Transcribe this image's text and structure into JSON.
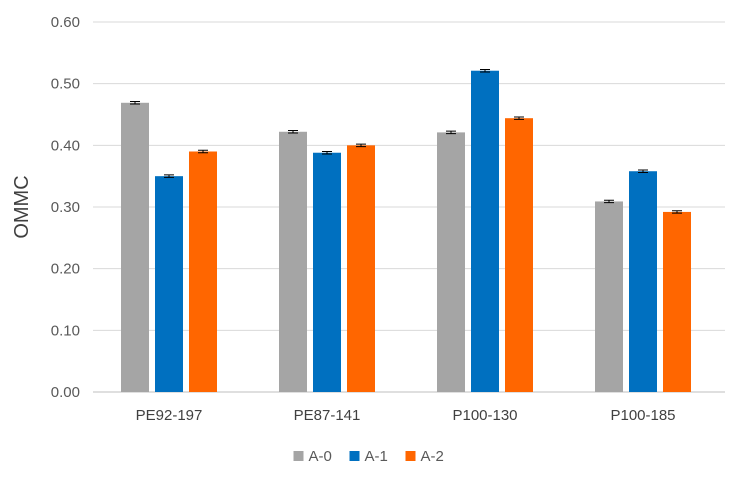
{
  "chart_data": {
    "type": "bar",
    "ylabel": "OMMC",
    "xlabel": "",
    "ylim": [
      0,
      0.6
    ],
    "yticks": [
      "0.00",
      "0.10",
      "0.20",
      "0.30",
      "0.40",
      "0.50",
      "0.60"
    ],
    "categories": [
      "PE92-197",
      "PE87-141",
      "P100-130",
      "P100-185"
    ],
    "series": [
      {
        "name": "A-0",
        "color": "#a5a5a5",
        "values": [
          0.469,
          0.422,
          0.421,
          0.309
        ],
        "errors": [
          0.002,
          0.002,
          0.002,
          0.002
        ]
      },
      {
        "name": "A-1",
        "color": "#0070c0",
        "values": [
          0.35,
          0.388,
          0.521,
          0.358
        ],
        "errors": [
          0.002,
          0.002,
          0.002,
          0.002
        ]
      },
      {
        "name": "A-2",
        "color": "#ff6600",
        "values": [
          0.39,
          0.4,
          0.444,
          0.292
        ],
        "errors": [
          0.002,
          0.002,
          0.002,
          0.002
        ]
      }
    ],
    "grid": true,
    "legend_position": "bottom"
  }
}
